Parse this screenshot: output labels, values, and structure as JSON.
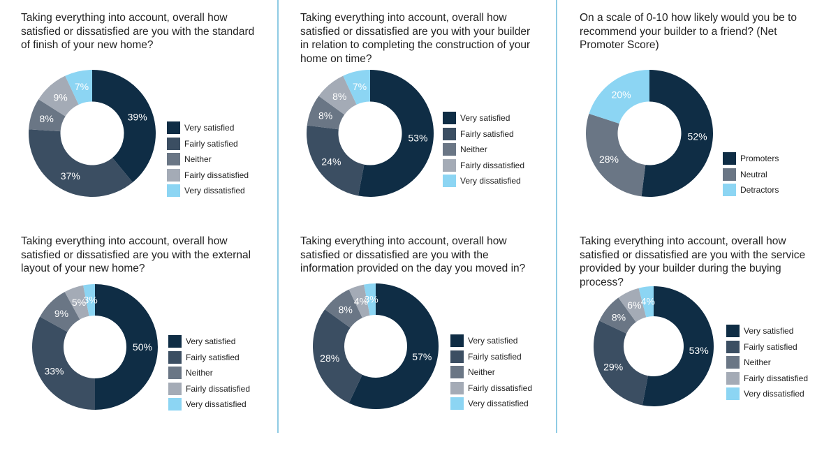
{
  "legend_colors": {
    "Very satisfied": "#0f2d45",
    "Fairly satisfied": "#3b4e62",
    "Neither": "#6a7685",
    "Fairly dissatisfied": "#a4abb6",
    "Very dissatisfied": "#8cd5f3",
    "Promoters": "#0f2d45",
    "Neutral": "#6a7685",
    "Detractors": "#8cd5f3"
  },
  "divider_color": "#8fcbe4",
  "chart_data": [
    {
      "type": "pie",
      "style": "donut",
      "title": "Taking everything into account, overall how satisfied or dissatisfied are you with the standard of finish of your new home?",
      "categories": [
        "Very satisfied",
        "Fairly satisfied",
        "Neither",
        "Fairly dissatisfied",
        "Very dissatisfied"
      ],
      "values": [
        39,
        37,
        8,
        9,
        7
      ],
      "labels": [
        "39%",
        "37%",
        "8%",
        "9%",
        "7%"
      ],
      "legend": "right"
    },
    {
      "type": "pie",
      "style": "donut",
      "title": "Taking everything into account, overall how satisfied or dissatisfied are you with your builder in relation to completing the construction of your home on time?",
      "categories": [
        "Very satisfied",
        "Fairly satisfied",
        "Neither",
        "Fairly dissatisfied",
        "Very dissatisfied"
      ],
      "values": [
        53,
        24,
        8,
        8,
        7
      ],
      "labels": [
        "53%",
        "24%",
        "8%",
        "8%",
        "7%"
      ],
      "legend": "right"
    },
    {
      "type": "pie",
      "style": "donut",
      "title": "On a scale of 0-10 how likely would you be to recommend your builder to a friend? (Net Promoter Score)",
      "categories": [
        "Promoters",
        "Neutral",
        "Detractors"
      ],
      "values": [
        52,
        28,
        20
      ],
      "labels": [
        "52%",
        "28%",
        "20%"
      ],
      "legend": "right"
    },
    {
      "type": "pie",
      "style": "donut",
      "title": "Taking everything into account, overall how satisfied or dissatisfied are you with the external layout of your new home?",
      "categories": [
        "Very satisfied",
        "Fairly satisfied",
        "Neither",
        "Fairly dissatisfied",
        "Very dissatisfied"
      ],
      "values": [
        50,
        33,
        9,
        5,
        3
      ],
      "labels": [
        "50%",
        "33%",
        "9%",
        "5%",
        "3%"
      ],
      "legend": "right"
    },
    {
      "type": "pie",
      "style": "donut",
      "title": "Taking everything into account, overall how satisfied or dissatisfied are you with the information provided on the day you moved in?",
      "categories": [
        "Very satisfied",
        "Fairly satisfied",
        "Neither",
        "Fairly dissatisfied",
        "Very dissatisfied"
      ],
      "values": [
        57,
        28,
        8,
        4,
        3
      ],
      "labels": [
        "57%",
        "28%",
        "8%",
        "4%",
        "3%"
      ],
      "legend": "right"
    },
    {
      "type": "pie",
      "style": "donut",
      "title": "Taking everything into account, overall how satisfied or dissatisfied are you with the service provided by your builder during the buying process?",
      "categories": [
        "Very satisfied",
        "Fairly satisfied",
        "Neither",
        "Fairly dissatisfied",
        "Very dissatisfied"
      ],
      "values": [
        53,
        29,
        8,
        6,
        4
      ],
      "labels": [
        "53%",
        "29%",
        "8%",
        "6%",
        "4%"
      ],
      "legend": "right"
    }
  ]
}
